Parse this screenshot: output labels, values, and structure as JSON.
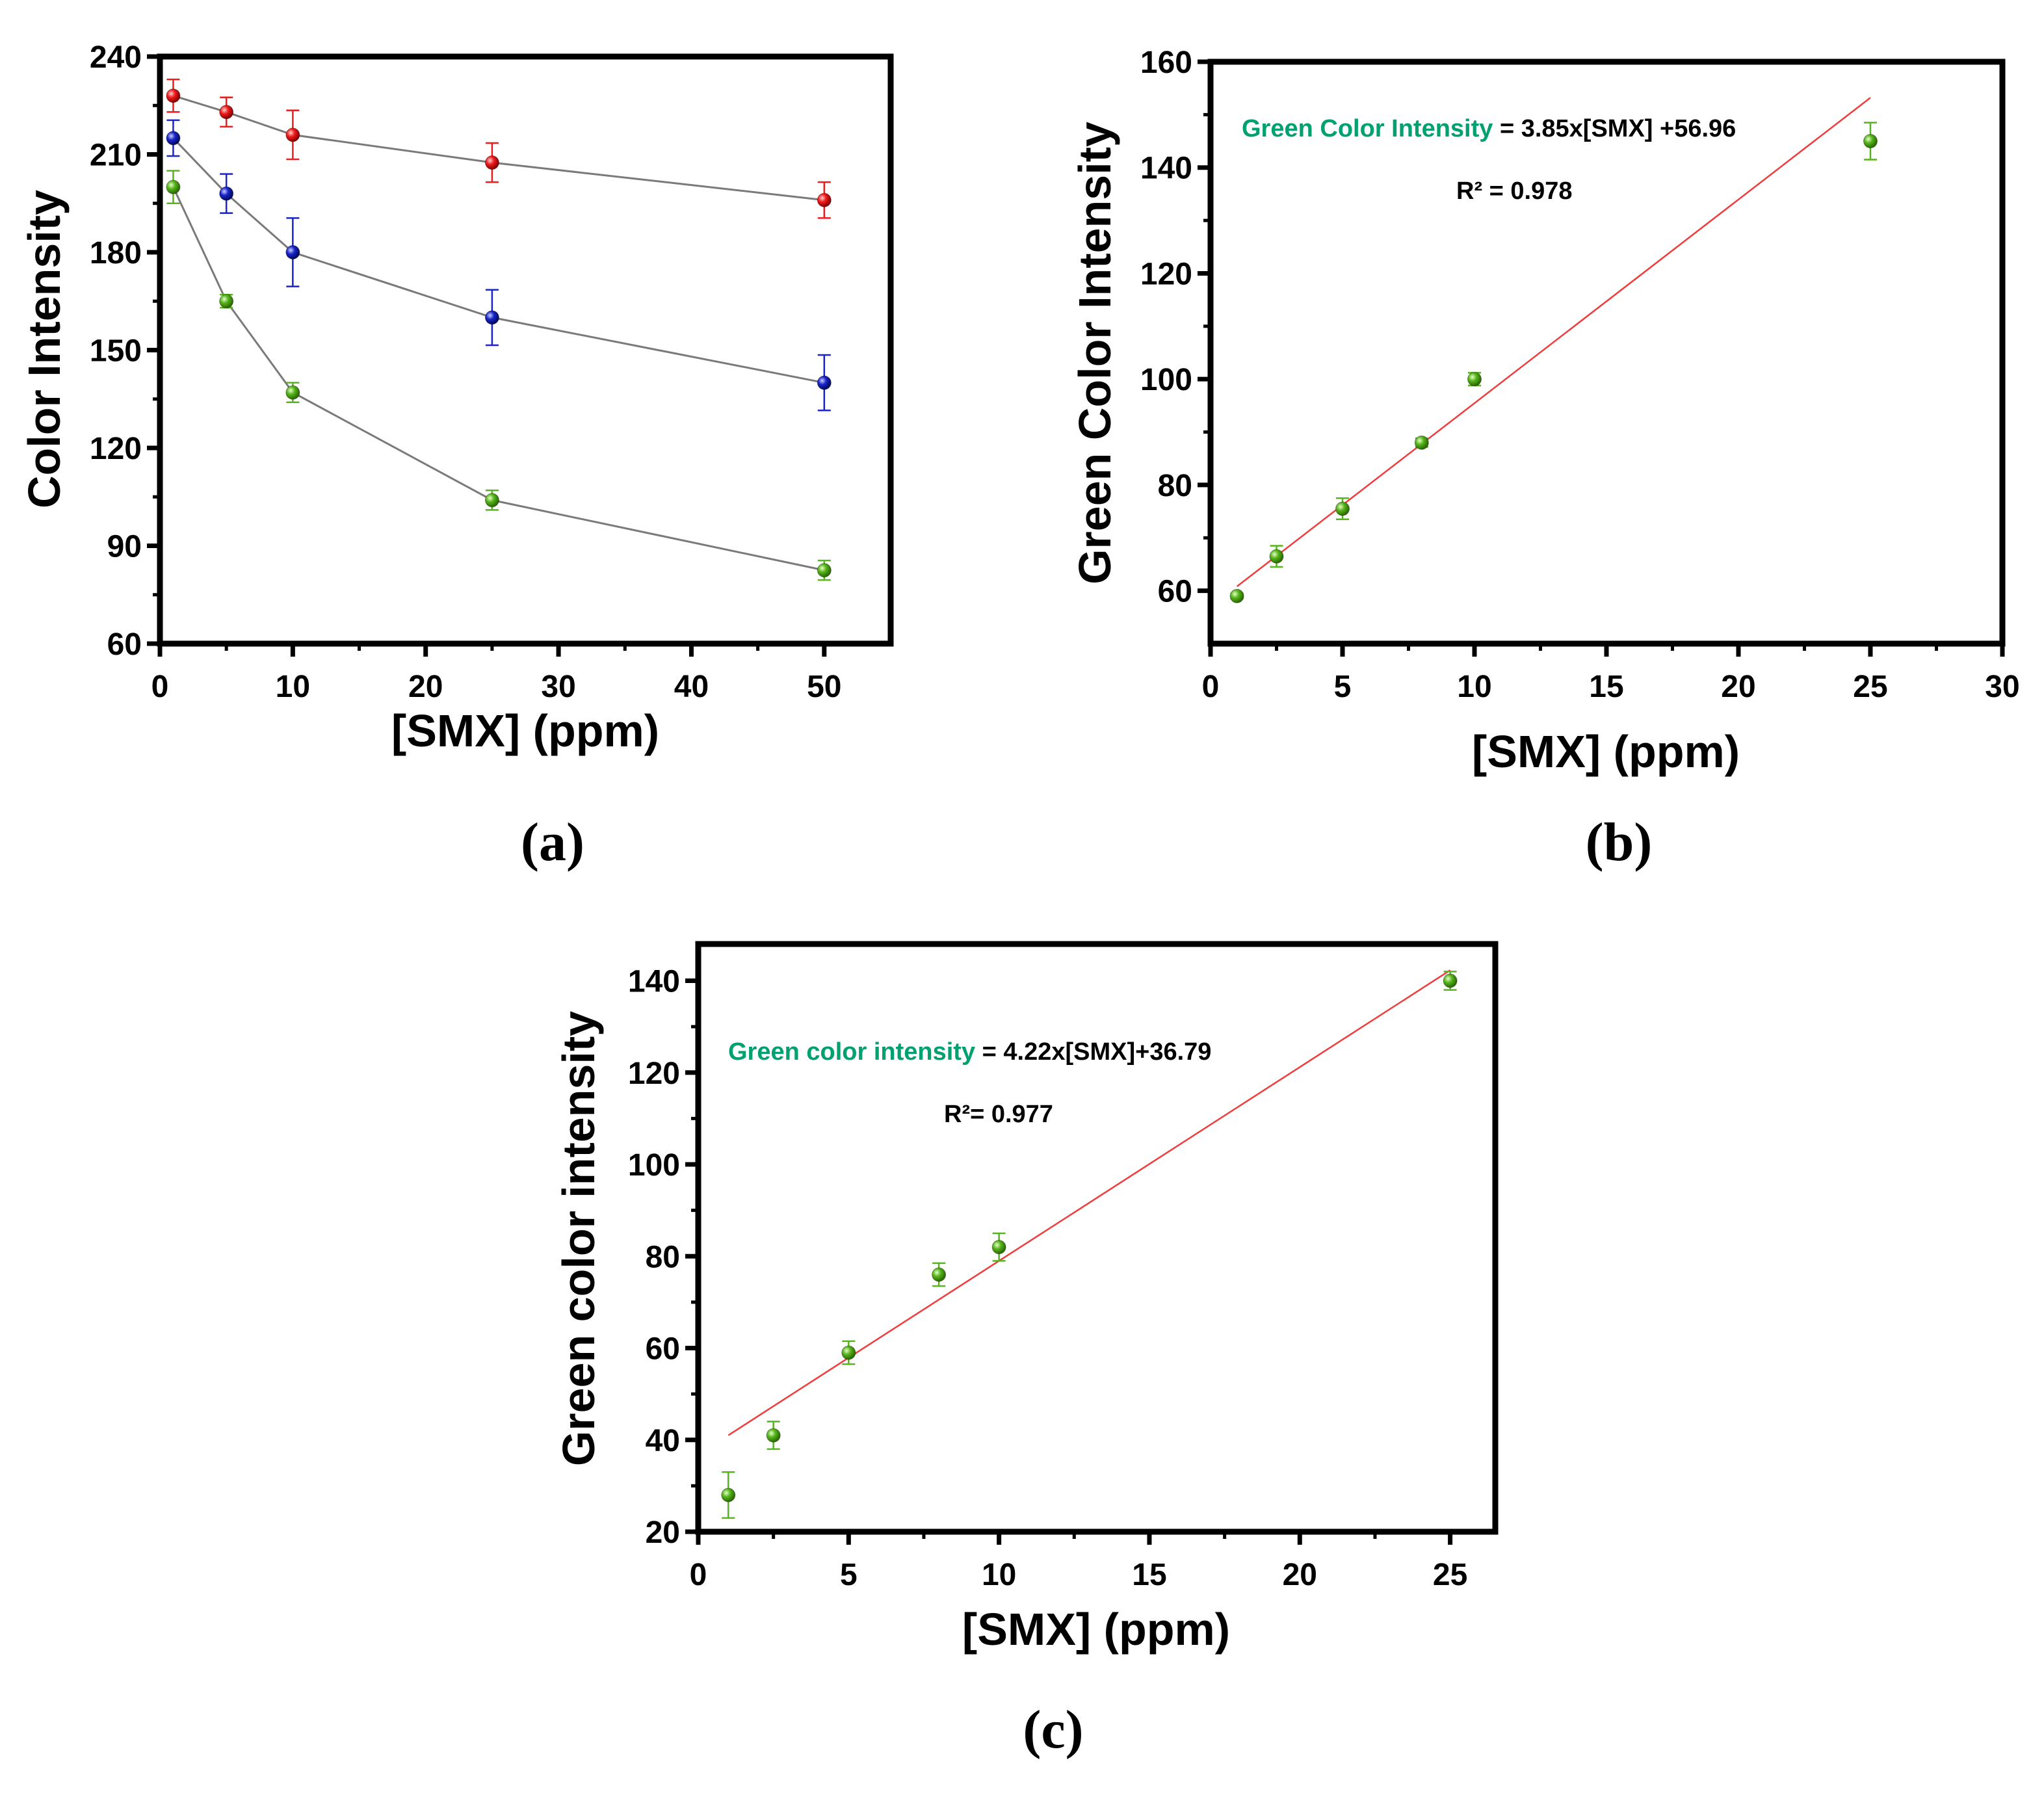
{
  "colors": {
    "red": "#ee1c1c",
    "blue": "#1a24c8",
    "green": "#56b41c",
    "connector": "#7a7a7a",
    "fit": "#f03c3c",
    "equation_label": "#00a070"
  },
  "chart_data": [
    {
      "id": "a",
      "type": "line",
      "panel_label": "(a)",
      "title": "",
      "xlabel": "[SMX] (ppm)",
      "ylabel": "Color Intensity",
      "xlim": [
        0,
        55
      ],
      "ylim": [
        60,
        240
      ],
      "xticks": [
        0,
        10,
        20,
        30,
        40,
        50
      ],
      "yticks": [
        60,
        90,
        120,
        150,
        180,
        210,
        240
      ],
      "series": [
        {
          "name": "Red",
          "color": "red",
          "x": [
            1,
            5,
            10,
            25,
            50
          ],
          "values": [
            228,
            223,
            216,
            207.5,
            196
          ],
          "errors": [
            5,
            4.5,
            7.5,
            6,
            5.5
          ]
        },
        {
          "name": "Blue",
          "color": "blue",
          "x": [
            1,
            5,
            10,
            25,
            50
          ],
          "values": [
            215,
            198,
            180,
            160,
            140
          ],
          "errors": [
            5.5,
            6,
            10.5,
            8.5,
            8.5
          ]
        },
        {
          "name": "Green",
          "color": "green",
          "x": [
            1,
            5,
            10,
            25,
            50
          ],
          "values": [
            200,
            165,
            137,
            104,
            82.5
          ],
          "errors": [
            5,
            2,
            3,
            3,
            3
          ]
        }
      ]
    },
    {
      "id": "b",
      "type": "scatter",
      "panel_label": "(b)",
      "title": "",
      "xlabel": "[SMX] (ppm)",
      "ylabel": "Green Color Intensity",
      "xlim": [
        0,
        30
      ],
      "ylim": [
        50,
        160
      ],
      "xticks": [
        0,
        5,
        10,
        15,
        20,
        25,
        30
      ],
      "yticks": [
        60,
        80,
        100,
        120,
        140,
        160
      ],
      "series": [
        {
          "name": "Green",
          "color": "green",
          "x": [
            1,
            2.5,
            5,
            8,
            10,
            25
          ],
          "values": [
            59,
            66.5,
            75.5,
            88,
            100,
            145
          ],
          "errors": [
            0.5,
            2,
            2,
            0.8,
            1.2,
            3.5
          ]
        }
      ],
      "fit": {
        "slope": 3.85,
        "intercept": 56.96,
        "x_range": [
          1,
          25
        ]
      },
      "equation": {
        "label": "Green Color Intensity",
        "formula": " = 3.85x[SMX] +56.96",
        "r2": "R² = 0.978"
      }
    },
    {
      "id": "c",
      "type": "scatter",
      "panel_label": "(c)",
      "title": "",
      "xlabel": "[SMX] (ppm)",
      "ylabel": "Green color intensity",
      "xlim": [
        0,
        26.5
      ],
      "ylim": [
        20,
        148
      ],
      "xticks": [
        0,
        5,
        10,
        15,
        20,
        25
      ],
      "yticks": [
        20,
        40,
        60,
        80,
        100,
        120,
        140
      ],
      "series": [
        {
          "name": "Green",
          "color": "green",
          "x": [
            1,
            2.5,
            5,
            8,
            10,
            25
          ],
          "values": [
            28,
            41,
            59,
            76,
            82,
            140
          ],
          "errors": [
            5,
            3,
            2.5,
            2.5,
            3,
            2
          ]
        }
      ],
      "fit": {
        "slope": 4.22,
        "intercept": 36.79,
        "x_range": [
          1,
          25
        ]
      },
      "equation": {
        "label": "Green color intensity",
        "formula": " = 4.22x[SMX]+36.79",
        "r2": "R²= 0.977"
      }
    }
  ]
}
